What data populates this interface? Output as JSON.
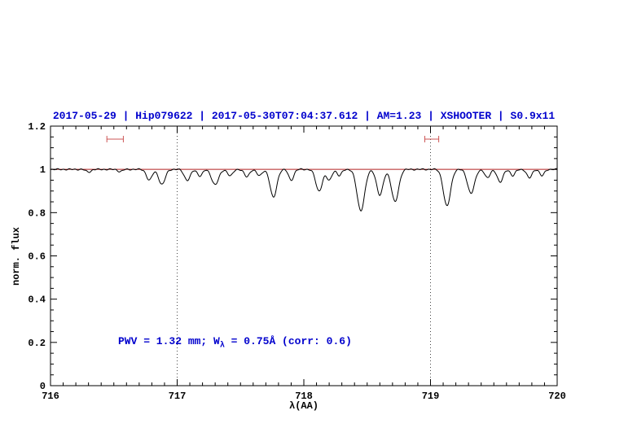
{
  "chart_data": {
    "type": "line",
    "title": "2017-05-29 | Hip079622 | 2017-05-30T07:04:37.612 | AM=1.23 | XSHOOTER | S0.9x11",
    "xlabel": "λ(AA)",
    "ylabel": "norm. flux",
    "xlim": [
      716,
      720
    ],
    "ylim": [
      0,
      1.2
    ],
    "x_ticks": [
      716,
      717,
      718,
      719,
      720
    ],
    "x_tick_labels": [
      "716",
      "717",
      "718",
      "719",
      "720"
    ],
    "y_ticks": [
      0,
      0.2,
      0.4,
      0.6,
      0.8,
      1,
      1.2
    ],
    "y_tick_labels": [
      "0",
      "0.2",
      "0.4",
      "0.6",
      "0.8",
      "1",
      "1.2"
    ],
    "x_minor_step": 0.1,
    "y_minor_step": 0.05,
    "grid": "dotted-vlines-only",
    "legend": "none",
    "continuum_level": 1.0,
    "dotted_vlines": [
      717,
      719
    ],
    "range_markers": [
      {
        "center": 716.51,
        "half_width": 0.065,
        "y": 1.14
      },
      {
        "center": 719.01,
        "half_width": 0.055,
        "y": 1.14
      }
    ],
    "absorption_lines": [
      [
        716.3,
        0.012,
        0.02
      ],
      [
        716.55,
        0.01,
        0.018
      ],
      [
        716.78,
        0.05,
        0.022
      ],
      [
        716.88,
        0.07,
        0.025
      ],
      [
        717.08,
        0.05,
        0.024
      ],
      [
        717.18,
        0.03,
        0.02
      ],
      [
        717.3,
        0.07,
        0.028
      ],
      [
        717.42,
        0.03,
        0.02
      ],
      [
        717.55,
        0.035,
        0.02
      ],
      [
        717.65,
        0.03,
        0.02
      ],
      [
        717.76,
        0.13,
        0.026
      ],
      [
        717.9,
        0.05,
        0.02
      ],
      [
        718.12,
        0.1,
        0.026
      ],
      [
        718.2,
        0.05,
        0.02
      ],
      [
        718.28,
        0.03,
        0.018
      ],
      [
        718.45,
        0.19,
        0.03
      ],
      [
        718.6,
        0.12,
        0.025
      ],
      [
        718.72,
        0.15,
        0.028
      ],
      [
        719.13,
        0.17,
        0.028
      ],
      [
        719.32,
        0.11,
        0.028
      ],
      [
        719.45,
        0.04,
        0.02
      ],
      [
        719.55,
        0.06,
        0.022
      ],
      [
        719.65,
        0.03,
        0.018
      ],
      [
        719.78,
        0.04,
        0.02
      ],
      [
        719.88,
        0.03,
        0.018
      ]
    ],
    "annotation": {
      "pre": "PWV = 1.32 mm; W",
      "sub": "λ",
      "post": " = 0.75Å (corr: 0.6)",
      "x": 716.55,
      "y": 0.2
    },
    "colors": {
      "title": "#0000cd",
      "annotation": "#0000cd",
      "spectrum": "#000000",
      "continuum": "#b22222",
      "marker": "#cc5555",
      "vline": "#444444",
      "axis": "#000000"
    }
  }
}
